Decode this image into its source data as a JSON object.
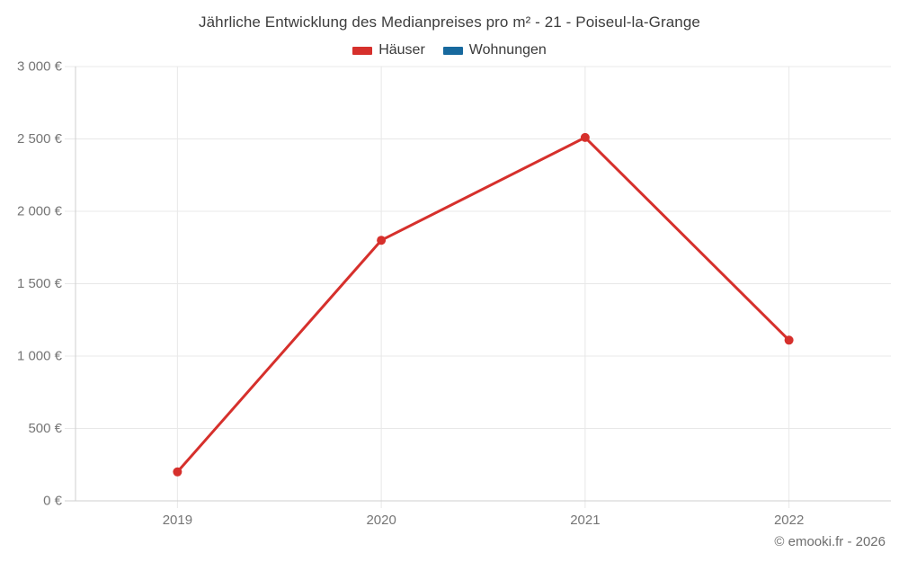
{
  "title": "Jährliche Entwicklung des Medianpreises pro m² - 21 - Poiseul-la-Grange",
  "legend": [
    {
      "label": "Häuser",
      "color": "#d6302c"
    },
    {
      "label": "Wohnungen",
      "color": "#17699e"
    }
  ],
  "footer": "© emooki.fr - 2026",
  "chart_data": {
    "type": "line",
    "title": "Jährliche Entwicklung des Medianpreises pro m² - 21 - Poiseul-la-Grange",
    "categories": [
      "2019",
      "2020",
      "2021",
      "2022"
    ],
    "series": [
      {
        "name": "Häuser",
        "color": "#d6302c",
        "values": [
          200,
          1800,
          2510,
          1110
        ]
      },
      {
        "name": "Wohnungen",
        "color": "#17699e",
        "values": [
          null,
          null,
          null,
          null
        ]
      }
    ],
    "xlabel": "",
    "ylabel": "",
    "ylim": [
      0,
      3000
    ],
    "y_tick_step": 500,
    "y_tick_labels": [
      "0 €",
      "500 €",
      "1 000 €",
      "1 500 €",
      "2 000 €",
      "2 500 €",
      "3 000 €"
    ],
    "grid": true,
    "legend_position": "top",
    "currency": "€"
  },
  "colors": {
    "grid": "#e8e8e8",
    "axis": "#cfcfcf",
    "tick_label": "#757575",
    "title_text": "#3d3d3d",
    "background": "#ffffff"
  }
}
